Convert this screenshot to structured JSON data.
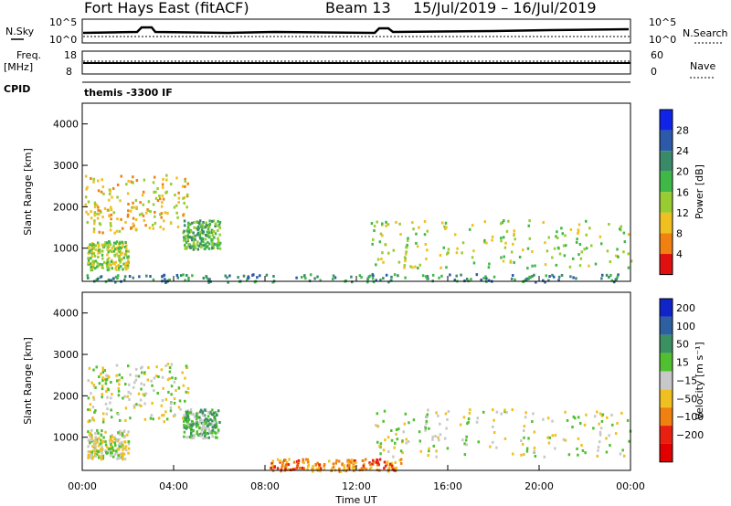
{
  "header": {
    "station": "Fort Hays East (fitACF)",
    "beam": "Beam 13",
    "date_range": "15/Jul/2019 – 16/Jul/2019"
  },
  "strip_labels": {
    "nsky": "N.Sky",
    "nsky_ticks": [
      "10^5",
      "10^0"
    ],
    "nsearch": "N.Search",
    "nsearch_ticks": [
      "10^5",
      "10^0"
    ],
    "freq": "Freq.",
    "freq_unit": "[MHz]",
    "freq_ticks": [
      "18",
      "8"
    ],
    "nave": "Nave",
    "nave_ticks": [
      "60",
      "0"
    ],
    "cpid": "CPID",
    "cpid_value": "themis -3300 IF"
  },
  "chart_data": [
    {
      "type": "heatmap",
      "panel": "power",
      "xlabel": "",
      "ylabel": "Slant Range [km]",
      "yticks": [
        "1000",
        "2000",
        "3000",
        "4000"
      ],
      "ylim": [
        200,
        4500
      ],
      "xlim": [
        "00:00",
        "24:00"
      ],
      "colorbar_label": "Power [dB]",
      "colorbar_ticks": [
        "4",
        "8",
        "12",
        "16",
        "20",
        "24",
        "28"
      ],
      "colors": [
        "#1024e8",
        "#2c5aa8",
        "#3a8a6a",
        "#40b848",
        "#98cc30",
        "#f0c020",
        "#f08010",
        "#e01010"
      ],
      "regions": [
        {
          "t0": 0.1,
          "t1": 4.6,
          "r0": 1400,
          "r1": 2800,
          "level": 5
        },
        {
          "t0": 0.2,
          "t1": 2.0,
          "r0": 500,
          "r1": 1200,
          "level": 4
        },
        {
          "t0": 4.4,
          "t1": 6.0,
          "r0": 1000,
          "r1": 1700,
          "level": 3
        },
        {
          "t0": 12.6,
          "t1": 24.0,
          "r0": 550,
          "r1": 1700,
          "level": 4
        },
        {
          "t0": 0.0,
          "t1": 24.0,
          "r0": 200,
          "r1": 400,
          "level": 2
        }
      ]
    },
    {
      "type": "heatmap",
      "panel": "velocity",
      "xlabel": "Time UT",
      "ylabel": "Slant Range [km]",
      "xticks": [
        "00:00",
        "04:00",
        "08:00",
        "12:00",
        "16:00",
        "20:00",
        "00:00"
      ],
      "yticks": [
        "1000",
        "2000",
        "3000",
        "4000"
      ],
      "ylim": [
        200,
        4500
      ],
      "xlim": [
        "00:00",
        "24:00"
      ],
      "colorbar_label": "Velocity [m s⁻¹]",
      "colorbar_ticks": [
        "200",
        "100",
        "50",
        "15",
        "−15",
        "−50",
        "−100",
        "−200"
      ],
      "colors": [
        "#1024c8",
        "#2c60a0",
        "#3a9060",
        "#50c030",
        "#c8c8c8",
        "#f0c020",
        "#f08010",
        "#e82010",
        "#e00000"
      ],
      "regions": [
        {
          "t0": 0.1,
          "t1": 4.6,
          "r0": 1400,
          "r1": 2800,
          "level": 4
        },
        {
          "t0": 0.2,
          "t1": 2.0,
          "r0": 500,
          "r1": 1200,
          "level": 4
        },
        {
          "t0": 4.4,
          "t1": 6.0,
          "r0": 1000,
          "r1": 1700,
          "level": 3
        },
        {
          "t0": 12.6,
          "t1": 24.0,
          "r0": 550,
          "r1": 1700,
          "level": 4
        },
        {
          "t0": 8.0,
          "t1": 14.0,
          "r0": 200,
          "r1": 500,
          "level": 6
        }
      ]
    }
  ]
}
